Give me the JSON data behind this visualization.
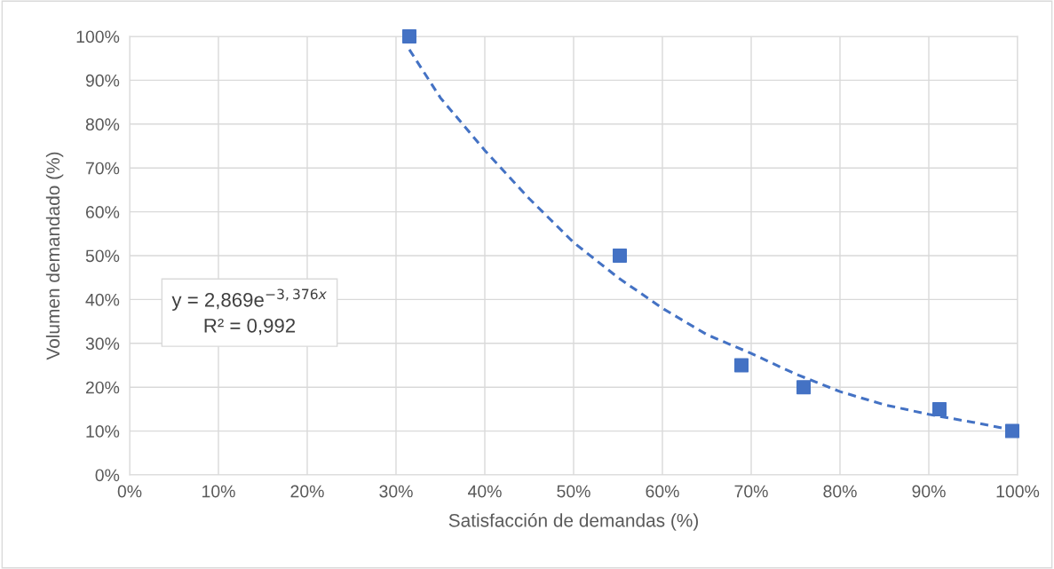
{
  "chart_data": {
    "type": "scatter",
    "xlabel": "Satisfacción de demandas (%)",
    "ylabel": "Volumen demandado (%)",
    "x": [
      31.5,
      55.2,
      68.9,
      75.9,
      91.2,
      99.4
    ],
    "series": [
      {
        "color": "#4472c4",
        "marker": "square",
        "values": [
          100,
          50,
          25,
          20,
          15,
          10
        ]
      },
      {
        "type": "line",
        "color": "#4472c4",
        "line_style": "dashed",
        "marker": "none",
        "x": [
          31.5,
          35,
          40,
          45,
          50,
          55,
          60,
          65,
          70,
          75,
          80,
          85,
          90,
          95,
          100
        ],
        "values": [
          97,
          86,
          74,
          63,
          53,
          45,
          38,
          32,
          27.7,
          23,
          19,
          16,
          13.8,
          12,
          10
        ]
      }
    ],
    "xlim": [
      0,
      100
    ],
    "ylim": [
      0,
      100
    ],
    "xticks": [
      {
        "value": 0,
        "label": "0%"
      },
      {
        "value": 10,
        "label": "10%"
      },
      {
        "value": 20,
        "label": "20%"
      },
      {
        "value": 30,
        "label": "30%"
      },
      {
        "value": 40,
        "label": "40%"
      },
      {
        "value": 50,
        "label": "50%"
      },
      {
        "value": 60,
        "label": "60%"
      },
      {
        "value": 70,
        "label": "70%"
      },
      {
        "value": 80,
        "label": "80%"
      },
      {
        "value": 90,
        "label": "90%"
      },
      {
        "value": 100,
        "label": "100%"
      }
    ],
    "yticks": [
      {
        "value": 0,
        "label": "0%"
      },
      {
        "value": 10,
        "label": "10%"
      },
      {
        "value": 20,
        "label": "20%"
      },
      {
        "value": 30,
        "label": "30%"
      },
      {
        "value": 40,
        "label": "40%"
      },
      {
        "value": 50,
        "label": "50%"
      },
      {
        "value": 60,
        "label": "60%"
      },
      {
        "value": 70,
        "label": "70%"
      },
      {
        "value": 80,
        "label": "80%"
      },
      {
        "value": 90,
        "label": "90%"
      },
      {
        "value": 100,
        "label": "100%"
      }
    ],
    "grid": true,
    "annotations": [
      "y = 2,869e$^{−3,376x}$\nR² = 0,992"
    ]
  }
}
